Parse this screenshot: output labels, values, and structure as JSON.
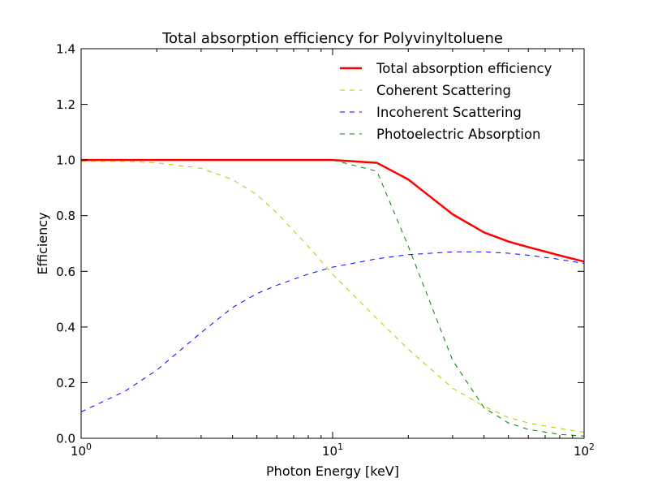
{
  "chart_data": {
    "type": "line",
    "title": "Total absorption efficiency for Polyvinyltoluene",
    "xlabel": "Photon Energy [keV]",
    "ylabel": "Efficiency",
    "xscale": "log",
    "xlim": [
      1,
      100
    ],
    "ylim": [
      0.0,
      1.4
    ],
    "grid": false,
    "legend_position": "top-right",
    "x_ticks": [
      {
        "value": 1,
        "base": "10",
        "exp": "0"
      },
      {
        "value": 10,
        "base": "10",
        "exp": "1"
      },
      {
        "value": 100,
        "base": "10",
        "exp": "2"
      }
    ],
    "y_ticks": [
      {
        "value": 0.0,
        "label": "0.0"
      },
      {
        "value": 0.2,
        "label": "0.2"
      },
      {
        "value": 0.4,
        "label": "0.4"
      },
      {
        "value": 0.6,
        "label": "0.6"
      },
      {
        "value": 0.8,
        "label": "0.8"
      },
      {
        "value": 1.0,
        "label": "1.0"
      },
      {
        "value": 1.2,
        "label": "1.2"
      },
      {
        "value": 1.4,
        "label": "1.4"
      }
    ],
    "series": [
      {
        "name": "Total absorption efficiency",
        "color": "#ff0000",
        "style": "solid",
        "x": [
          1,
          1.5,
          2,
          3,
          4,
          5,
          6,
          8,
          10,
          15,
          20,
          30,
          40,
          50,
          60,
          80,
          100
        ],
        "y": [
          1.0,
          1.0,
          1.0,
          1.0,
          1.0,
          1.0,
          1.0,
          1.0,
          1.0,
          0.99,
          0.93,
          0.805,
          0.74,
          0.707,
          0.687,
          0.657,
          0.635
        ]
      },
      {
        "name": "Coherent Scattering",
        "color": "#bfbf00",
        "style": "dashed",
        "x": [
          1,
          1.5,
          2,
          3,
          4,
          5,
          6,
          8,
          10,
          15,
          20,
          30,
          40,
          50,
          60,
          80,
          100
        ],
        "y": [
          0.995,
          0.995,
          0.99,
          0.97,
          0.93,
          0.875,
          0.81,
          0.69,
          0.59,
          0.43,
          0.32,
          0.18,
          0.115,
          0.075,
          0.055,
          0.035,
          0.022
        ]
      },
      {
        "name": "Incoherent Scattering",
        "color": "#0000ff",
        "style": "dashed",
        "x": [
          1,
          1.5,
          2,
          3,
          4,
          5,
          6,
          8,
          10,
          15,
          20,
          30,
          40,
          50,
          60,
          80,
          100
        ],
        "y": [
          0.095,
          0.17,
          0.245,
          0.38,
          0.47,
          0.52,
          0.55,
          0.59,
          0.615,
          0.645,
          0.66,
          0.67,
          0.67,
          0.665,
          0.658,
          0.643,
          0.628
        ]
      },
      {
        "name": "Photoelectric Absorption",
        "color": "#008000",
        "style": "dashed",
        "x": [
          10,
          15,
          20,
          30,
          40,
          50,
          60,
          80,
          100
        ],
        "y": [
          1.0,
          0.96,
          0.69,
          0.28,
          0.11,
          0.055,
          0.032,
          0.014,
          0.008
        ]
      }
    ]
  }
}
